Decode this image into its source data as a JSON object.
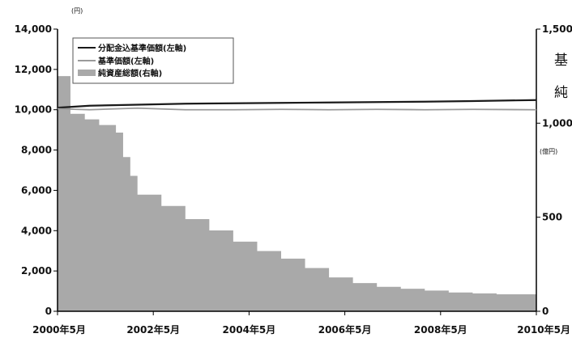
{
  "chart_data": {
    "type": "line+area",
    "units": {
      "left": "(円)",
      "right": "(億円)"
    },
    "x_ticks": [
      "2000年5月",
      "2002年5月",
      "2004年5月",
      "2006年5月",
      "2008年5月",
      "2010年5月"
    ],
    "x_range": [
      2000.33,
      2010.33
    ],
    "left_axis": {
      "ticks": [
        0,
        2000,
        4000,
        6000,
        8000,
        10000,
        12000,
        14000
      ],
      "ylim": [
        0,
        14000
      ],
      "tick_labels": [
        "0",
        "2,000",
        "4,000",
        "6,000",
        "8,000",
        "10,000",
        "12,000",
        "14,000"
      ]
    },
    "right_axis": {
      "ticks": [
        0,
        500,
        1000,
        1500
      ],
      "ylim": [
        0,
        1500
      ],
      "tick_labels": [
        "0",
        "500",
        "1,000",
        "1,500"
      ]
    },
    "legend": [
      "分配金込基準価額(左軸)",
      "基準価額(左軸)",
      "純資産総額(右軸)"
    ],
    "legend_position": "top-left",
    "side_title": [
      "基",
      "純"
    ],
    "series": [
      {
        "name": "分配金込基準価額(左軸)",
        "axis": "left",
        "style": "line",
        "color": "#1a1a1a",
        "x": [
          2000.33,
          2001.0,
          2002.0,
          2003.0,
          2004.0,
          2005.0,
          2006.0,
          2007.0,
          2008.0,
          2009.0,
          2010.33
        ],
        "y": [
          10100,
          10200,
          10250,
          10300,
          10320,
          10340,
          10360,
          10380,
          10400,
          10430,
          10480
        ]
      },
      {
        "name": "基準価額(左軸)",
        "axis": "left",
        "style": "line",
        "color": "#9a9a9a",
        "x": [
          2000.33,
          2001.0,
          2002.0,
          2003.0,
          2004.0,
          2005.0,
          2006.0,
          2007.0,
          2008.0,
          2009.0,
          2010.33
        ],
        "y": [
          10050,
          10000,
          10080,
          10000,
          10000,
          10020,
          10000,
          10020,
          10000,
          10020,
          10000
        ]
      },
      {
        "name": "純資産総額(右軸)",
        "axis": "right",
        "style": "step-area",
        "color": "#a9a9a9",
        "x": [
          2000.33,
          2000.6,
          2000.9,
          2001.2,
          2001.55,
          2001.7,
          2001.85,
          2002.0,
          2002.5,
          2003.0,
          2003.5,
          2004.0,
          2004.5,
          2005.0,
          2005.5,
          2006.0,
          2006.5,
          2007.0,
          2007.5,
          2008.0,
          2008.5,
          2009.0,
          2009.5,
          2010.33
        ],
        "y": [
          1250,
          1050,
          1020,
          990,
          950,
          820,
          720,
          620,
          560,
          490,
          430,
          370,
          320,
          280,
          230,
          180,
          150,
          130,
          120,
          110,
          100,
          95,
          90,
          85
        ]
      }
    ]
  }
}
